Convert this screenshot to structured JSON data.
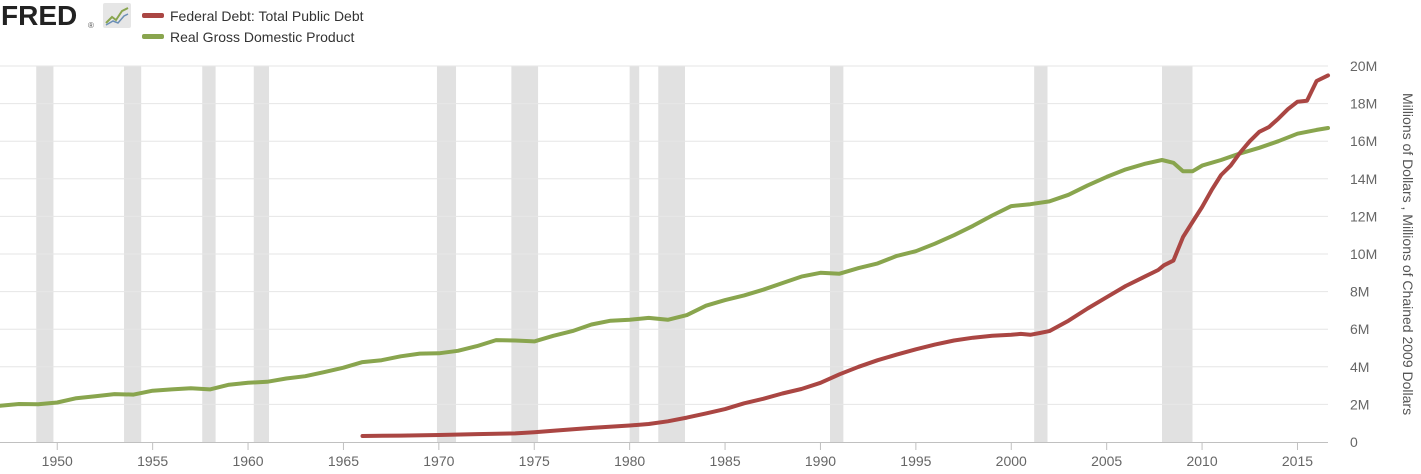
{
  "header": {
    "logo_text": "FRED",
    "logo_mark": "®"
  },
  "legend": {
    "items": [
      {
        "label": "Federal Debt: Total Public Debt",
        "color": "#aa4643"
      },
      {
        "label": "Real Gross Domestic Product",
        "color": "#89a54e"
      }
    ]
  },
  "chart_data": {
    "type": "line",
    "title": "",
    "xlabel": "",
    "ylabel": "Millions of Dollars , Millions of Chained 2009 Dollars",
    "xlim": [
      1947,
      2016.6
    ],
    "ylim": [
      0,
      20000000
    ],
    "x_ticks": [
      1950,
      1955,
      1960,
      1965,
      1970,
      1975,
      1980,
      1985,
      1990,
      1995,
      2000,
      2005,
      2010,
      2015
    ],
    "y_ticks": [
      {
        "value": 0,
        "label": "0"
      },
      {
        "value": 2000000,
        "label": "2M"
      },
      {
        "value": 4000000,
        "label": "4M"
      },
      {
        "value": 6000000,
        "label": "6M"
      },
      {
        "value": 8000000,
        "label": "8M"
      },
      {
        "value": 10000000,
        "label": "10M"
      },
      {
        "value": 12000000,
        "label": "12M"
      },
      {
        "value": 14000000,
        "label": "14M"
      },
      {
        "value": 16000000,
        "label": "16M"
      },
      {
        "value": 18000000,
        "label": "18M"
      },
      {
        "value": 20000000,
        "label": "20M"
      }
    ],
    "grid": "horizontal",
    "recessions": [
      [
        1948.9,
        1949.8
      ],
      [
        1953.5,
        1954.4
      ],
      [
        1957.6,
        1958.3
      ],
      [
        1960.3,
        1961.1
      ],
      [
        1969.9,
        1970.9
      ],
      [
        1973.8,
        1975.2
      ],
      [
        1980.0,
        1980.5
      ],
      [
        1981.5,
        1982.9
      ],
      [
        1990.5,
        1991.2
      ],
      [
        2001.2,
        2001.9
      ],
      [
        2007.9,
        2009.5
      ]
    ],
    "series": [
      {
        "name": "Federal Debt: Total Public Debt",
        "color": "#aa4643",
        "points": [
          [
            1966.0,
            320000
          ],
          [
            1968.0,
            340000
          ],
          [
            1970.0,
            370000
          ],
          [
            1972.0,
            420000
          ],
          [
            1974.0,
            460000
          ],
          [
            1975.0,
            520000
          ],
          [
            1976.0,
            600000
          ],
          [
            1978.0,
            750000
          ],
          [
            1980.0,
            880000
          ],
          [
            1981.0,
            960000
          ],
          [
            1982.0,
            1100000
          ],
          [
            1983.0,
            1300000
          ],
          [
            1984.0,
            1520000
          ],
          [
            1985.0,
            1750000
          ],
          [
            1986.0,
            2060000
          ],
          [
            1987.0,
            2300000
          ],
          [
            1988.0,
            2580000
          ],
          [
            1989.0,
            2820000
          ],
          [
            1990.0,
            3150000
          ],
          [
            1991.0,
            3600000
          ],
          [
            1992.0,
            4000000
          ],
          [
            1993.0,
            4350000
          ],
          [
            1994.0,
            4650000
          ],
          [
            1995.0,
            4930000
          ],
          [
            1996.0,
            5180000
          ],
          [
            1997.0,
            5400000
          ],
          [
            1998.0,
            5550000
          ],
          [
            1999.0,
            5650000
          ],
          [
            2000.0,
            5700000
          ],
          [
            2000.5,
            5750000
          ],
          [
            2001.0,
            5700000
          ],
          [
            2001.5,
            5800000
          ],
          [
            2002.0,
            5900000
          ],
          [
            2003.0,
            6450000
          ],
          [
            2004.0,
            7100000
          ],
          [
            2005.0,
            7700000
          ],
          [
            2006.0,
            8300000
          ],
          [
            2007.0,
            8800000
          ],
          [
            2007.7,
            9150000
          ],
          [
            2008.0,
            9400000
          ],
          [
            2008.5,
            9650000
          ],
          [
            2009.0,
            10900000
          ],
          [
            2009.5,
            11700000
          ],
          [
            2010.0,
            12500000
          ],
          [
            2010.5,
            13400000
          ],
          [
            2011.0,
            14200000
          ],
          [
            2011.5,
            14700000
          ],
          [
            2012.0,
            15400000
          ],
          [
            2012.5,
            16000000
          ],
          [
            2013.0,
            16500000
          ],
          [
            2013.5,
            16750000
          ],
          [
            2014.0,
            17200000
          ],
          [
            2014.5,
            17700000
          ],
          [
            2015.0,
            18100000
          ],
          [
            2015.5,
            18150000
          ],
          [
            2016.0,
            19200000
          ],
          [
            2016.6,
            19500000
          ]
        ]
      },
      {
        "name": "Real Gross Domestic Product",
        "color": "#89a54e",
        "points": [
          [
            1947.0,
            1930000
          ],
          [
            1948.0,
            2020000
          ],
          [
            1949.0,
            2010000
          ],
          [
            1950.0,
            2100000
          ],
          [
            1951.0,
            2330000
          ],
          [
            1952.0,
            2430000
          ],
          [
            1953.0,
            2550000
          ],
          [
            1954.0,
            2520000
          ],
          [
            1955.0,
            2730000
          ],
          [
            1956.0,
            2800000
          ],
          [
            1957.0,
            2860000
          ],
          [
            1958.0,
            2800000
          ],
          [
            1959.0,
            3050000
          ],
          [
            1960.0,
            3150000
          ],
          [
            1961.0,
            3200000
          ],
          [
            1962.0,
            3380000
          ],
          [
            1963.0,
            3500000
          ],
          [
            1964.0,
            3720000
          ],
          [
            1965.0,
            3950000
          ],
          [
            1966.0,
            4250000
          ],
          [
            1967.0,
            4350000
          ],
          [
            1968.0,
            4560000
          ],
          [
            1969.0,
            4700000
          ],
          [
            1970.0,
            4720000
          ],
          [
            1971.0,
            4850000
          ],
          [
            1972.0,
            5100000
          ],
          [
            1973.0,
            5420000
          ],
          [
            1974.0,
            5400000
          ],
          [
            1975.0,
            5350000
          ],
          [
            1976.0,
            5650000
          ],
          [
            1977.0,
            5900000
          ],
          [
            1978.0,
            6250000
          ],
          [
            1979.0,
            6450000
          ],
          [
            1980.0,
            6500000
          ],
          [
            1981.0,
            6600000
          ],
          [
            1982.0,
            6500000
          ],
          [
            1983.0,
            6750000
          ],
          [
            1984.0,
            7250000
          ],
          [
            1985.0,
            7550000
          ],
          [
            1986.0,
            7800000
          ],
          [
            1987.0,
            8100000
          ],
          [
            1988.0,
            8450000
          ],
          [
            1989.0,
            8800000
          ],
          [
            1990.0,
            9000000
          ],
          [
            1991.0,
            8950000
          ],
          [
            1992.0,
            9250000
          ],
          [
            1993.0,
            9500000
          ],
          [
            1994.0,
            9900000
          ],
          [
            1995.0,
            10150000
          ],
          [
            1996.0,
            10550000
          ],
          [
            1997.0,
            11000000
          ],
          [
            1998.0,
            11500000
          ],
          [
            1999.0,
            12050000
          ],
          [
            2000.0,
            12550000
          ],
          [
            2001.0,
            12650000
          ],
          [
            2002.0,
            12800000
          ],
          [
            2003.0,
            13150000
          ],
          [
            2004.0,
            13650000
          ],
          [
            2005.0,
            14100000
          ],
          [
            2006.0,
            14500000
          ],
          [
            2007.0,
            14800000
          ],
          [
            2007.9,
            15000000
          ],
          [
            2008.5,
            14850000
          ],
          [
            2009.0,
            14400000
          ],
          [
            2009.5,
            14400000
          ],
          [
            2010.0,
            14700000
          ],
          [
            2011.0,
            15000000
          ],
          [
            2012.0,
            15350000
          ],
          [
            2013.0,
            15650000
          ],
          [
            2014.0,
            16000000
          ],
          [
            2015.0,
            16400000
          ],
          [
            2016.0,
            16600000
          ],
          [
            2016.6,
            16700000
          ]
        ]
      }
    ]
  }
}
